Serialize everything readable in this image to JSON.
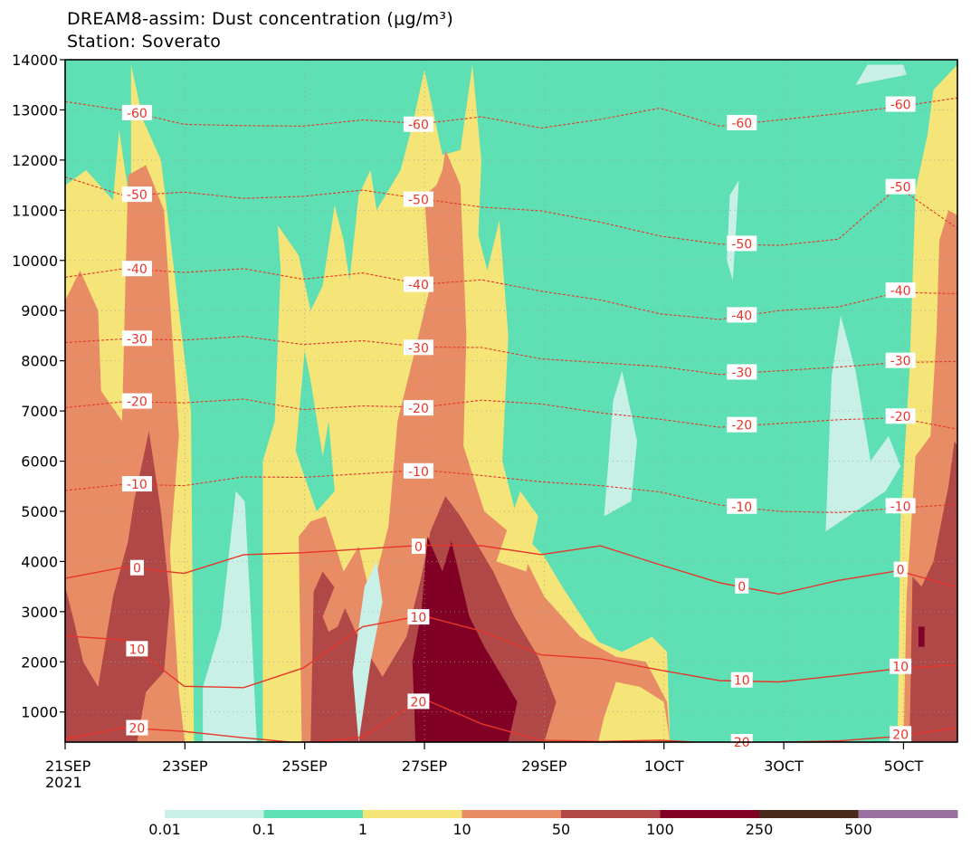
{
  "chart_data": {
    "type": "heatmap",
    "title": "DREAM8-assim: Dust concentration (μg/m³)",
    "subtitle": "Station: Soverato",
    "xlabel": "",
    "ylabel": "",
    "y_ticks": [
      1000,
      2000,
      3000,
      4000,
      5000,
      6000,
      7000,
      8000,
      9000,
      10000,
      11000,
      12000,
      13000,
      14000
    ],
    "ylim": [
      400,
      14000
    ],
    "x_range_days": [
      "2021-09-21",
      "2021-10-06"
    ],
    "x_ticks": [
      {
        "label": "21SEP",
        "label2": "2021",
        "day": 0
      },
      {
        "label": "23SEP",
        "day": 2
      },
      {
        "label": "25SEP",
        "day": 4
      },
      {
        "label": "27SEP",
        "day": 6
      },
      {
        "label": "29SEP",
        "day": 8
      },
      {
        "label": "1OCT",
        "day": 10
      },
      {
        "label": "3OCT",
        "day": 12
      },
      {
        "label": "5OCT",
        "day": 14
      }
    ],
    "grid": true,
    "colorbar": {
      "levels": [
        "0.01",
        "0.1",
        "1",
        "10",
        "50",
        "100",
        "250",
        "500"
      ],
      "colors": [
        "#c8f0e6",
        "#5ee0b4",
        "#f5e478",
        "#e88c66",
        "#b04848",
        "#800026",
        "#4a2a1a",
        "#9a70a0"
      ]
    },
    "contour_series": [
      {
        "level": -60,
        "values": [
          13200,
          13000,
          12700,
          12650,
          12700,
          12800,
          12700,
          12900,
          12650,
          12800,
          13000,
          12700,
          12800,
          12900,
          13100,
          13250
        ]
      },
      {
        "level": -50,
        "values": [
          11700,
          11300,
          11350,
          11200,
          11300,
          11400,
          11200,
          11100,
          11000,
          10750,
          10450,
          10350,
          10300,
          10400,
          11500,
          10650
        ]
      },
      {
        "level": -40,
        "values": [
          9700,
          9850,
          9750,
          9800,
          9650,
          9750,
          9500,
          9650,
          9400,
          9200,
          8900,
          8850,
          9000,
          9050,
          9400,
          9350
        ]
      },
      {
        "level": -30,
        "values": [
          8400,
          8450,
          8400,
          8450,
          8350,
          8400,
          8250,
          8300,
          8050,
          7950,
          7850,
          7750,
          7800,
          7850,
          8000,
          8000
        ]
      },
      {
        "level": -20,
        "values": [
          7100,
          7200,
          7150,
          7200,
          7050,
          7100,
          7050,
          7250,
          7150,
          6950,
          6800,
          6700,
          6750,
          6800,
          6900,
          6650
        ]
      },
      {
        "level": -10,
        "values": [
          5450,
          5550,
          5500,
          5650,
          5700,
          5750,
          5800,
          5750,
          5600,
          5500,
          5350,
          5150,
          5000,
          4950,
          5100,
          5150
        ]
      },
      {
        "level": 0,
        "values": [
          3700,
          3900,
          3750,
          4100,
          4200,
          4250,
          4300,
          4350,
          4150,
          4300,
          3900,
          3600,
          3350,
          3600,
          3850,
          3500
        ]
      },
      {
        "level": 10,
        "values": [
          2550,
          2450,
          1500,
          1450,
          1900,
          2700,
          2900,
          2650,
          2150,
          2050,
          1800,
          1650,
          1600,
          1700,
          1900,
          1950
        ]
      },
      {
        "level": 20,
        "values": [
          500,
          700,
          600,
          450,
          400,
          500,
          1250,
          800,
          450,
          400,
          400,
          400,
          400,
          400,
          550,
          700
        ]
      }
    ],
    "contour_labels": [
      "-60",
      "-50",
      "-40",
      "-30",
      "-20",
      "-10",
      "0",
      "10",
      "20"
    ]
  }
}
